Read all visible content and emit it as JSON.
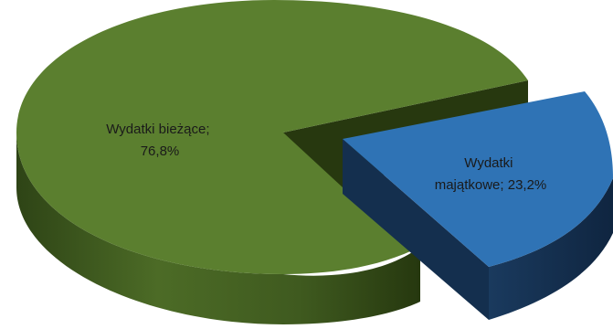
{
  "chart_data": {
    "type": "pie",
    "title": "",
    "slices": [
      {
        "name": "Wydatki bieżące",
        "value": 76.8,
        "unit": "%",
        "color": "#5B7F2F",
        "label_lines": [
          "Wydatki bieżące;",
          "76,8%"
        ]
      },
      {
        "name": "Wydatki majątkowe",
        "value": 23.2,
        "unit": "%",
        "color": "#2F73B5",
        "label_lines": [
          "Wydatki",
          "majątkowe; 23,2%"
        ]
      }
    ],
    "legend": "none",
    "style": "3d-exploded"
  }
}
